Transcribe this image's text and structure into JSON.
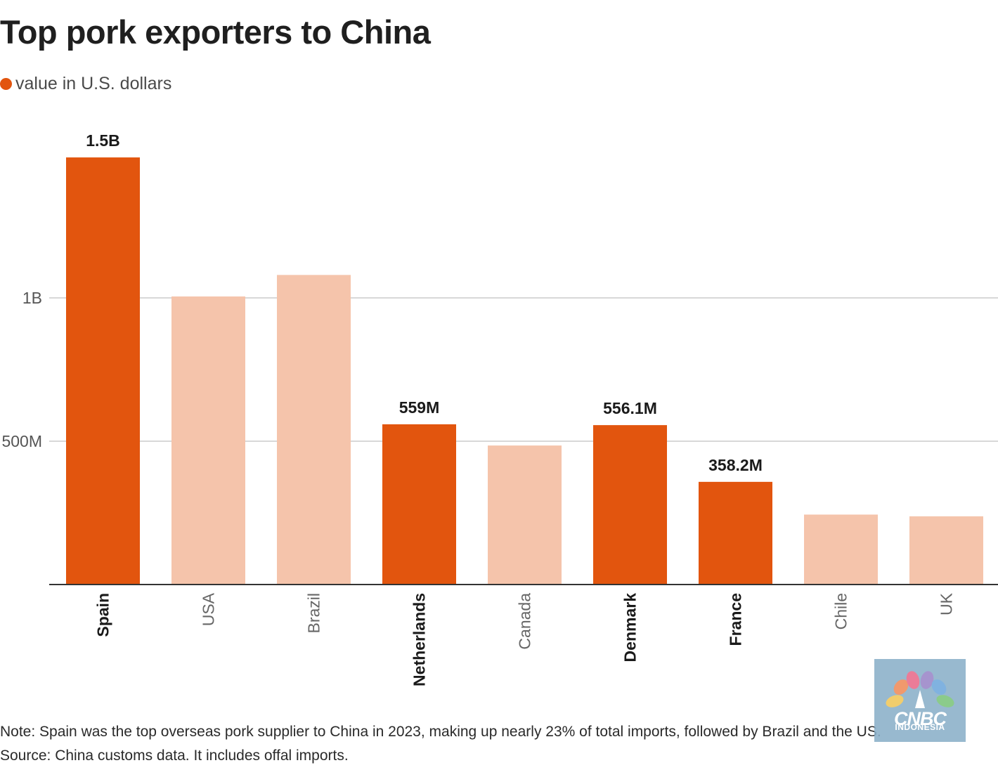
{
  "header": {
    "title": "Top pork exporters to China"
  },
  "legend": {
    "label": "value in U.S. dollars",
    "color": "#e2550e"
  },
  "chart_data": {
    "type": "bar",
    "title": "Top pork exporters to China",
    "categories": [
      "Spain",
      "USA",
      "Brazil",
      "Netherlands",
      "Canada",
      "Denmark",
      "France",
      "Chile",
      "UK"
    ],
    "series": [
      {
        "name": "value in U.S. dollars",
        "values": [
          1490000000,
          1005000000,
          1080000000,
          559000000,
          485000000,
          556100000,
          358200000,
          244000000,
          238000000
        ]
      }
    ],
    "highlighted": [
      true,
      false,
      false,
      true,
      false,
      true,
      true,
      false,
      false
    ],
    "data_labels": [
      "1.5B",
      null,
      null,
      "559M",
      null,
      "556.1M",
      "358.2M",
      null,
      null
    ],
    "y_ticks": [
      {
        "value": 500000000,
        "label": "500M"
      },
      {
        "value": 1000000000,
        "label": "1B"
      }
    ],
    "ylim": [
      0,
      1600000000
    ],
    "xlabel": "",
    "ylabel": "",
    "grid": true,
    "colors": {
      "highlight": "#e2550e",
      "muted": "#f5c4ab",
      "grid": "#cccccc",
      "axis": "#333333",
      "highlight_label": "#1a1a1a",
      "muted_label": "#666666"
    }
  },
  "footer": {
    "note": "Note: Spain was the top overseas pork supplier to China in 2023, making up nearly 23% of total imports, followed by Brazil and the US.",
    "source": "Source: China customs data. It includes offal imports."
  },
  "watermark": {
    "brand": "CNBC",
    "sub": "INDONESIA",
    "icon": "peacock-logo-icon"
  }
}
